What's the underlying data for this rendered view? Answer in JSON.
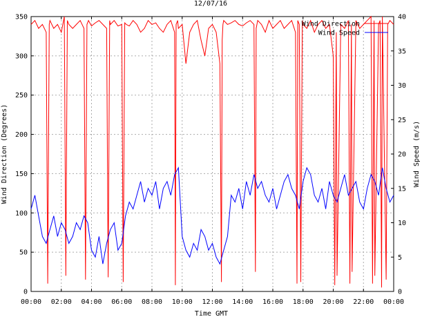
{
  "chart_data": {
    "type": "line",
    "title": "12/07/16",
    "xlabel": "Time GMT",
    "ylabel_left": "Wind Direction (Degrees)",
    "ylabel_right": "Wind Speed (m/s)",
    "x_range_hours": [
      0,
      24
    ],
    "x_ticks": [
      "00:00",
      "02:00",
      "04:00",
      "06:00",
      "08:00",
      "10:00",
      "12:00",
      "14:00",
      "16:00",
      "18:00",
      "20:00",
      "22:00",
      "00:00"
    ],
    "y_left_range": [
      0,
      350
    ],
    "y_left_ticks": [
      "0",
      "50",
      "100",
      "150",
      "200",
      "250",
      "300",
      "350"
    ],
    "y_right_range": [
      0,
      40
    ],
    "y_right_ticks": [
      "0",
      "5",
      "10",
      "15",
      "20",
      "25",
      "30",
      "35",
      "40"
    ],
    "grid": true,
    "legend_position": "top-right",
    "series": [
      {
        "name": "Wind Direction",
        "axis": "left",
        "color": "#ff0000",
        "x_hours": [
          0.0,
          0.25,
          0.5,
          0.75,
          1.0,
          1.1,
          1.2,
          1.25,
          1.5,
          1.75,
          2.0,
          2.2,
          2.3,
          2.4,
          2.5,
          2.75,
          3.0,
          3.25,
          3.5,
          3.6,
          3.7,
          3.8,
          4.0,
          4.25,
          4.5,
          4.75,
          5.0,
          5.1,
          5.2,
          5.25,
          5.5,
          5.75,
          6.0,
          6.1,
          6.2,
          6.3,
          6.5,
          6.75,
          7.0,
          7.25,
          7.5,
          7.75,
          8.0,
          8.25,
          8.5,
          8.75,
          9.0,
          9.25,
          9.5,
          9.55,
          9.6,
          9.7,
          9.75,
          10.0,
          10.25,
          10.5,
          10.75,
          11.0,
          11.25,
          11.5,
          11.75,
          12.0,
          12.25,
          12.5,
          12.6,
          12.65,
          12.7,
          12.75,
          13.0,
          13.25,
          13.5,
          13.75,
          14.0,
          14.25,
          14.5,
          14.75,
          14.85,
          14.9,
          15.0,
          15.25,
          15.5,
          15.75,
          16.0,
          16.25,
          16.5,
          16.75,
          17.0,
          17.25,
          17.5,
          17.6,
          17.65,
          17.75,
          17.85,
          17.95,
          18.0,
          18.25,
          18.5,
          18.75,
          19.0,
          19.25,
          19.5,
          19.75,
          20.0,
          20.1,
          20.2,
          20.25,
          20.5,
          20.75,
          21.0,
          21.1,
          21.2,
          21.25,
          21.5,
          21.75,
          22.0,
          22.25,
          22.5,
          22.6,
          22.7,
          22.75,
          23.0,
          23.1,
          23.2,
          23.25,
          23.5,
          23.6,
          23.75,
          24.0
        ],
        "values": [
          340,
          345,
          335,
          340,
          330,
          10,
          340,
          345,
          335,
          340,
          330,
          350,
          20,
          345,
          340,
          335,
          340,
          345,
          335,
          15,
          340,
          345,
          338,
          342,
          345,
          340,
          335,
          18,
          345,
          340,
          345,
          338,
          340,
          12,
          342,
          340,
          338,
          345,
          340,
          330,
          335,
          345,
          340,
          342,
          335,
          330,
          340,
          345,
          330,
          8,
          340,
          345,
          335,
          340,
          290,
          330,
          340,
          345,
          320,
          300,
          335,
          340,
          330,
          290,
          12,
          320,
          340,
          345,
          340,
          342,
          345,
          340,
          338,
          342,
          345,
          340,
          25,
          335,
          345,
          340,
          330,
          345,
          335,
          340,
          345,
          335,
          340,
          345,
          330,
          10,
          345,
          340,
          12,
          345,
          340,
          335,
          345,
          330,
          340,
          345,
          335,
          340,
          300,
          8,
          330,
          20,
          340,
          335,
          345,
          10,
          340,
          25,
          345,
          335,
          340,
          345,
          350,
          10,
          345,
          20,
          340,
          345,
          5,
          350,
          15,
          340,
          345,
          340
        ]
      },
      {
        "name": "Wind Speed",
        "axis": "right",
        "color": "#0000ff",
        "x_hours": [
          0.0,
          0.25,
          0.5,
          0.75,
          1.0,
          1.25,
          1.5,
          1.75,
          2.0,
          2.25,
          2.5,
          2.75,
          3.0,
          3.25,
          3.5,
          3.75,
          4.0,
          4.25,
          4.5,
          4.75,
          5.0,
          5.25,
          5.5,
          5.75,
          6.0,
          6.25,
          6.5,
          6.75,
          7.0,
          7.25,
          7.5,
          7.75,
          8.0,
          8.25,
          8.5,
          8.75,
          9.0,
          9.25,
          9.5,
          9.75,
          10.0,
          10.25,
          10.5,
          10.75,
          11.0,
          11.25,
          11.5,
          11.75,
          12.0,
          12.25,
          12.5,
          12.75,
          13.0,
          13.25,
          13.5,
          13.75,
          14.0,
          14.25,
          14.5,
          14.75,
          15.0,
          15.25,
          15.5,
          15.75,
          16.0,
          16.25,
          16.5,
          16.75,
          17.0,
          17.25,
          17.5,
          17.75,
          18.0,
          18.25,
          18.5,
          18.75,
          19.0,
          19.25,
          19.5,
          19.75,
          20.0,
          20.25,
          20.5,
          20.75,
          21.0,
          21.25,
          21.5,
          21.75,
          22.0,
          22.25,
          22.5,
          22.75,
          23.0,
          23.25,
          23.5,
          23.75,
          24.0
        ],
        "values": [
          12,
          14,
          11,
          8,
          7,
          9,
          11,
          8,
          10,
          9,
          7,
          8,
          10,
          9,
          11,
          10,
          6,
          5,
          8,
          4,
          7,
          9,
          10,
          6,
          7,
          11,
          13,
          12,
          14,
          16,
          13,
          15,
          14,
          16,
          12,
          15,
          16,
          14,
          17,
          18,
          8,
          6,
          5,
          7,
          6,
          9,
          8,
          6,
          7,
          5,
          4,
          6,
          8,
          14,
          13,
          15,
          12,
          16,
          14,
          17,
          15,
          16,
          14,
          13,
          15,
          12,
          14,
          16,
          17,
          15,
          14,
          12,
          16,
          18,
          17,
          14,
          13,
          15,
          12,
          16,
          14,
          13,
          15,
          17,
          14,
          15,
          16,
          13,
          12,
          15,
          17,
          16,
          14,
          18,
          15,
          13,
          14
        ]
      }
    ]
  }
}
